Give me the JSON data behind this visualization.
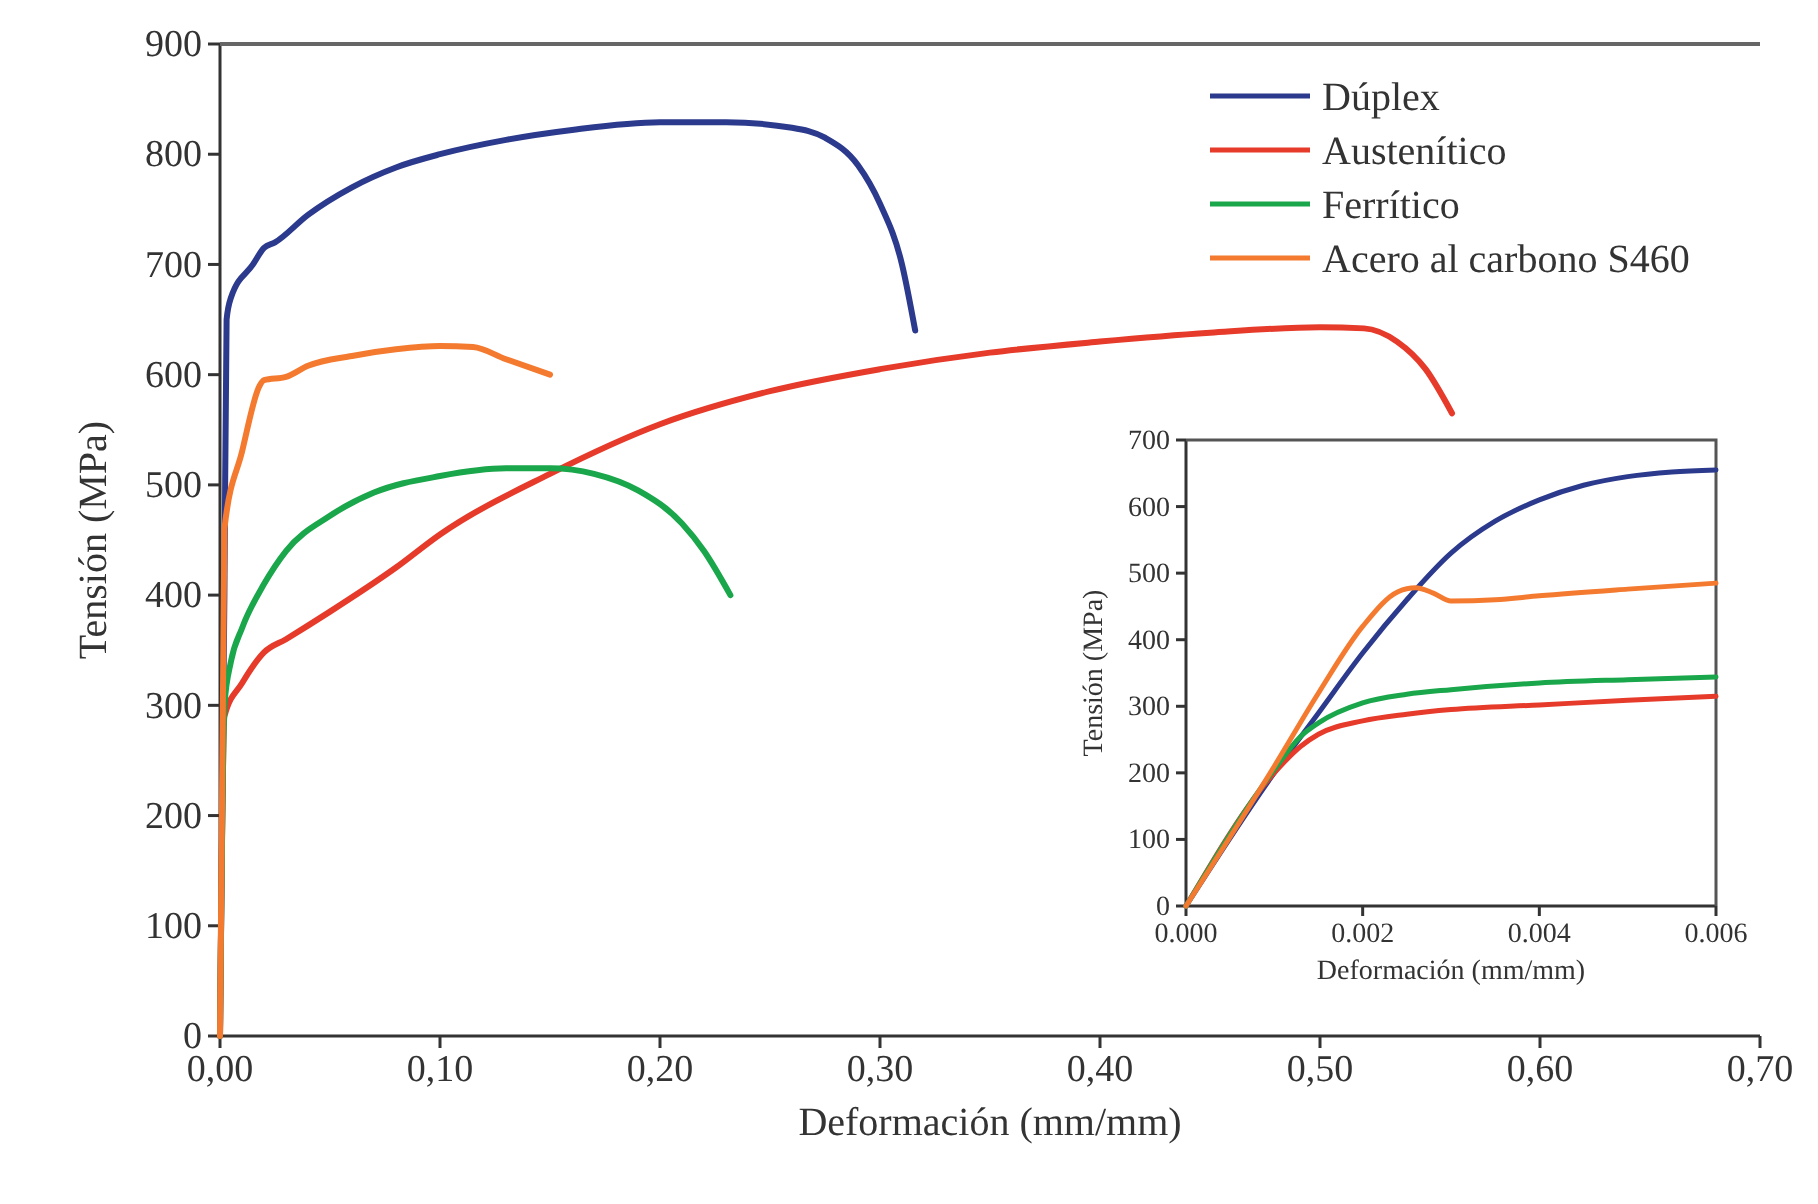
{
  "chart_data": [
    {
      "type": "line",
      "xlabel": "Deformación (mm/mm)",
      "ylabel": "Tensión (MPa)",
      "xlim": [
        0,
        0.7
      ],
      "ylim": [
        0,
        900
      ],
      "xticks": [
        {
          "value": 0,
          "label": "0,00"
        },
        {
          "value": 0.1,
          "label": "0,10"
        },
        {
          "value": 0.2,
          "label": "0,20"
        },
        {
          "value": 0.3,
          "label": "0,30"
        },
        {
          "value": 0.4,
          "label": "0,40"
        },
        {
          "value": 0.5,
          "label": "0,50"
        },
        {
          "value": 0.6,
          "label": "0,60"
        },
        {
          "value": 0.7,
          "label": "0,70"
        }
      ],
      "yticks": [
        0,
        100,
        200,
        300,
        400,
        500,
        600,
        700,
        800,
        900
      ],
      "grid": false,
      "legend": "top right",
      "marker": "none",
      "line_style": "solid",
      "series": [
        {
          "name": "Dúplex",
          "color": "#2b3a8c",
          "x": [
            0,
            0.002,
            0.003,
            0.005,
            0.015,
            0.02,
            0.025,
            0.04,
            0.06,
            0.08,
            0.1,
            0.13,
            0.16,
            0.2,
            0.23,
            0.26,
            0.275,
            0.29,
            0.3,
            0.31,
            0.316
          ],
          "values": [
            0,
            400,
            650,
            670,
            700,
            715,
            720,
            745,
            770,
            788,
            800,
            813,
            822,
            829,
            829,
            824,
            815,
            790,
            755,
            700,
            640
          ]
        },
        {
          "name": "Austenítico",
          "color": "#e63a2a",
          "x": [
            0,
            0.002,
            0.01,
            0.02,
            0.03,
            0.05,
            0.08,
            0.1,
            0.15,
            0.2,
            0.25,
            0.3,
            0.35,
            0.4,
            0.45,
            0.5,
            0.52,
            0.535,
            0.548,
            0.56
          ],
          "values": [
            0,
            290,
            320,
            348,
            360,
            385,
            425,
            455,
            510,
            555,
            585,
            605,
            620,
            630,
            638,
            643,
            642,
            630,
            605,
            565
          ]
        },
        {
          "name": "Ferrítico",
          "color": "#1aa64a",
          "x": [
            0,
            0.002,
            0.005,
            0.01,
            0.02,
            0.03,
            0.05,
            0.07,
            0.1,
            0.13,
            0.15,
            0.17,
            0.19,
            0.21,
            0.22,
            0.232
          ],
          "values": [
            0,
            300,
            340,
            370,
            410,
            440,
            472,
            493,
            508,
            515,
            515,
            510,
            495,
            465,
            440,
            400
          ]
        },
        {
          "name": "Acero al carbono S460",
          "color": "#f47a30",
          "x": [
            0,
            0.002,
            0.01,
            0.018,
            0.02,
            0.03,
            0.04,
            0.06,
            0.08,
            0.1,
            0.115,
            0.13,
            0.15
          ],
          "values": [
            0,
            460,
            530,
            590,
            595,
            598,
            608,
            617,
            623,
            626,
            625,
            614,
            600
          ]
        }
      ]
    },
    {
      "type": "line",
      "xlabel": "Deformación (mm/mm)",
      "ylabel": "Tensión (MPa)",
      "xlim": [
        0,
        0.006
      ],
      "ylim": [
        0,
        700
      ],
      "xticks": [
        {
          "value": 0,
          "label": "0.000"
        },
        {
          "value": 0.002,
          "label": "0.002"
        },
        {
          "value": 0.004,
          "label": "0.004"
        },
        {
          "value": 0.006,
          "label": "0.006"
        }
      ],
      "yticks": [
        0,
        100,
        200,
        300,
        400,
        500,
        600,
        700
      ],
      "grid": false,
      "legend": false,
      "marker": "none",
      "line_style": "solid",
      "series": [
        {
          "color": "#2b3a8c",
          "x": [
            0,
            0.001,
            0.0015,
            0.002,
            0.0025,
            0.003,
            0.0035,
            0.004,
            0.0045,
            0.005,
            0.0055,
            0.006
          ],
          "values": [
            0,
            200,
            290,
            380,
            460,
            530,
            578,
            610,
            632,
            645,
            652,
            655
          ]
        },
        {
          "color": "#e63a2a",
          "x": [
            0,
            0.001,
            0.0013,
            0.0015,
            0.002,
            0.0025,
            0.003,
            0.004,
            0.005,
            0.006
          ],
          "values": [
            0,
            200,
            240,
            258,
            278,
            288,
            295,
            302,
            309,
            315
          ]
        },
        {
          "color": "#1aa64a",
          "x": [
            0,
            0.001,
            0.0013,
            0.0015,
            0.002,
            0.0025,
            0.003,
            0.004,
            0.005,
            0.006
          ],
          "values": [
            0,
            205,
            255,
            275,
            305,
            318,
            325,
            335,
            340,
            344
          ]
        },
        {
          "color": "#f47a30",
          "x": [
            0,
            0.001,
            0.0015,
            0.002,
            0.0024,
            0.0026,
            0.0028,
            0.003,
            0.0035,
            0.004,
            0.005,
            0.006
          ],
          "values": [
            0,
            210,
            320,
            420,
            472,
            478,
            470,
            458,
            460,
            466,
            476,
            485
          ]
        }
      ]
    }
  ]
}
